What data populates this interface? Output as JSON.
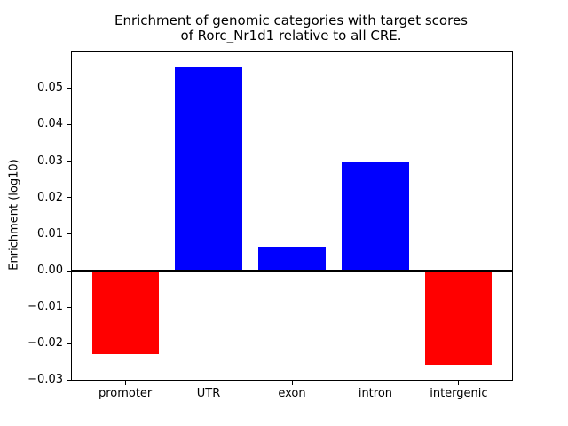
{
  "figure": {
    "title_line1": "Enrichment of genomic categories with target scores",
    "title_line2": "of Rorc_Nr1d1 relative to all CRE."
  },
  "chart_data": {
    "type": "bar",
    "title": "Enrichment of genomic categories with target scores\nof Rorc_Nr1d1 relative to all CRE.",
    "xlabel": "",
    "ylabel": "Enrichment (log10)",
    "categories": [
      "promoter",
      "UTR",
      "exon",
      "intron",
      "intergenic"
    ],
    "values": [
      -0.0229,
      0.0557,
      0.0066,
      0.0297,
      -0.0258
    ],
    "bar_colors": [
      "#ff0000",
      "#0000ff",
      "#0000ff",
      "#0000ff",
      "#ff0000"
    ],
    "positive_color": "#0000ff",
    "negative_color": "#ff0000",
    "ylim": [
      -0.0299,
      0.0598
    ],
    "xlim": [
      -0.64,
      4.64
    ],
    "bar_width": 0.8,
    "yticks": [
      {
        "value": 0.05,
        "label": "0.05"
      },
      {
        "value": 0.04,
        "label": "0.04"
      },
      {
        "value": 0.03,
        "label": "0.03"
      },
      {
        "value": 0.02,
        "label": "0.02"
      },
      {
        "value": 0.01,
        "label": "0.01"
      },
      {
        "value": 0.0,
        "label": "0.00"
      },
      {
        "value": -0.01,
        "label": "−0.01"
      },
      {
        "value": -0.02,
        "label": "−0.02"
      },
      {
        "value": -0.03,
        "label": "−0.03"
      }
    ],
    "zero_line": true,
    "grid": false,
    "legend": false
  }
}
